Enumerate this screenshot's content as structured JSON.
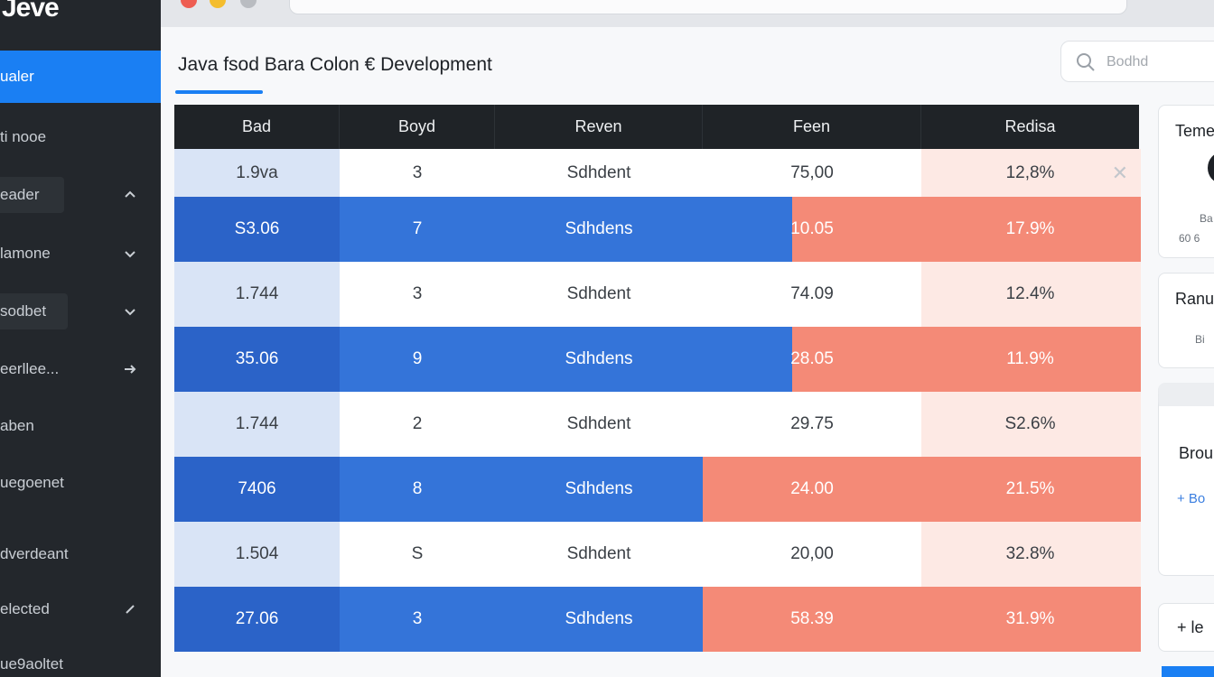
{
  "sidebar": {
    "brand": "Jeve",
    "items": [
      {
        "label": "ualer",
        "chevron": "none"
      },
      {
        "label": "ti nooe",
        "chevron": "none"
      },
      {
        "label": "eader",
        "chevron": "up"
      },
      {
        "label": "lamone",
        "chevron": "down"
      },
      {
        "label": "sodbet",
        "chevron": "down"
      },
      {
        "label": "eerllee...",
        "chevron": "right"
      },
      {
        "label": "aben",
        "chevron": "none"
      },
      {
        "label": "uegoenet",
        "chevron": "none"
      },
      {
        "label": "dverdeant",
        "chevron": "none"
      },
      {
        "label": "elected",
        "chevron": "edit"
      },
      {
        "label": "ue9aoltet",
        "chevron": "none"
      }
    ]
  },
  "page": {
    "title": "Java fsod Bara Colon € Development"
  },
  "search": {
    "placeholder": "Bodhd"
  },
  "table": {
    "headers": [
      "Bad",
      "Boyd",
      "Reven",
      "Feen",
      "Redisa"
    ],
    "rows": [
      {
        "cells": [
          "1.9va",
          "3",
          "Sdhdent",
          "75,00",
          "12,8%"
        ],
        "style": "light"
      },
      {
        "cells": [
          "S3.06",
          "7",
          "Sdhdens",
          "10.05",
          "17.9%"
        ],
        "style": "dark"
      },
      {
        "cells": [
          "1.744",
          "3",
          "Sdhdent",
          "74.09",
          "12.4%"
        ],
        "style": "light"
      },
      {
        "cells": [
          "35.06",
          "9",
          "Sdhdens",
          "28.05",
          "11.9%"
        ],
        "style": "dark"
      },
      {
        "cells": [
          "1.744",
          "2",
          "Sdhdent",
          "29.75",
          "S2.6%"
        ],
        "style": "light"
      },
      {
        "cells": [
          "7406",
          "8",
          "Sdhdens",
          "24.00",
          "21.5%"
        ],
        "style": "dark"
      },
      {
        "cells": [
          "1.504",
          "S",
          "Sdhdent",
          "20,00",
          "32.8%"
        ],
        "style": "light"
      },
      {
        "cells": [
          "27.06",
          "3",
          "Sdhdens",
          "58.39",
          "31.9%"
        ],
        "style": "dark"
      }
    ]
  },
  "right_panel": {
    "card1_title": "Teme",
    "card1_sub1": "Ba",
    "card1_sub2": "60 6",
    "card2_title": "Ranu",
    "card2_sub": "Bi",
    "card3_title": "Brou",
    "card3_action": "+ Bo",
    "card4_action": "+ le"
  },
  "colors": {
    "accent": "#1a7ff3",
    "row_blue": "#2f6fd3",
    "row_salmon": "#f48a77",
    "sidebar_bg": "#23272c",
    "header_bg": "#1f2327"
  }
}
